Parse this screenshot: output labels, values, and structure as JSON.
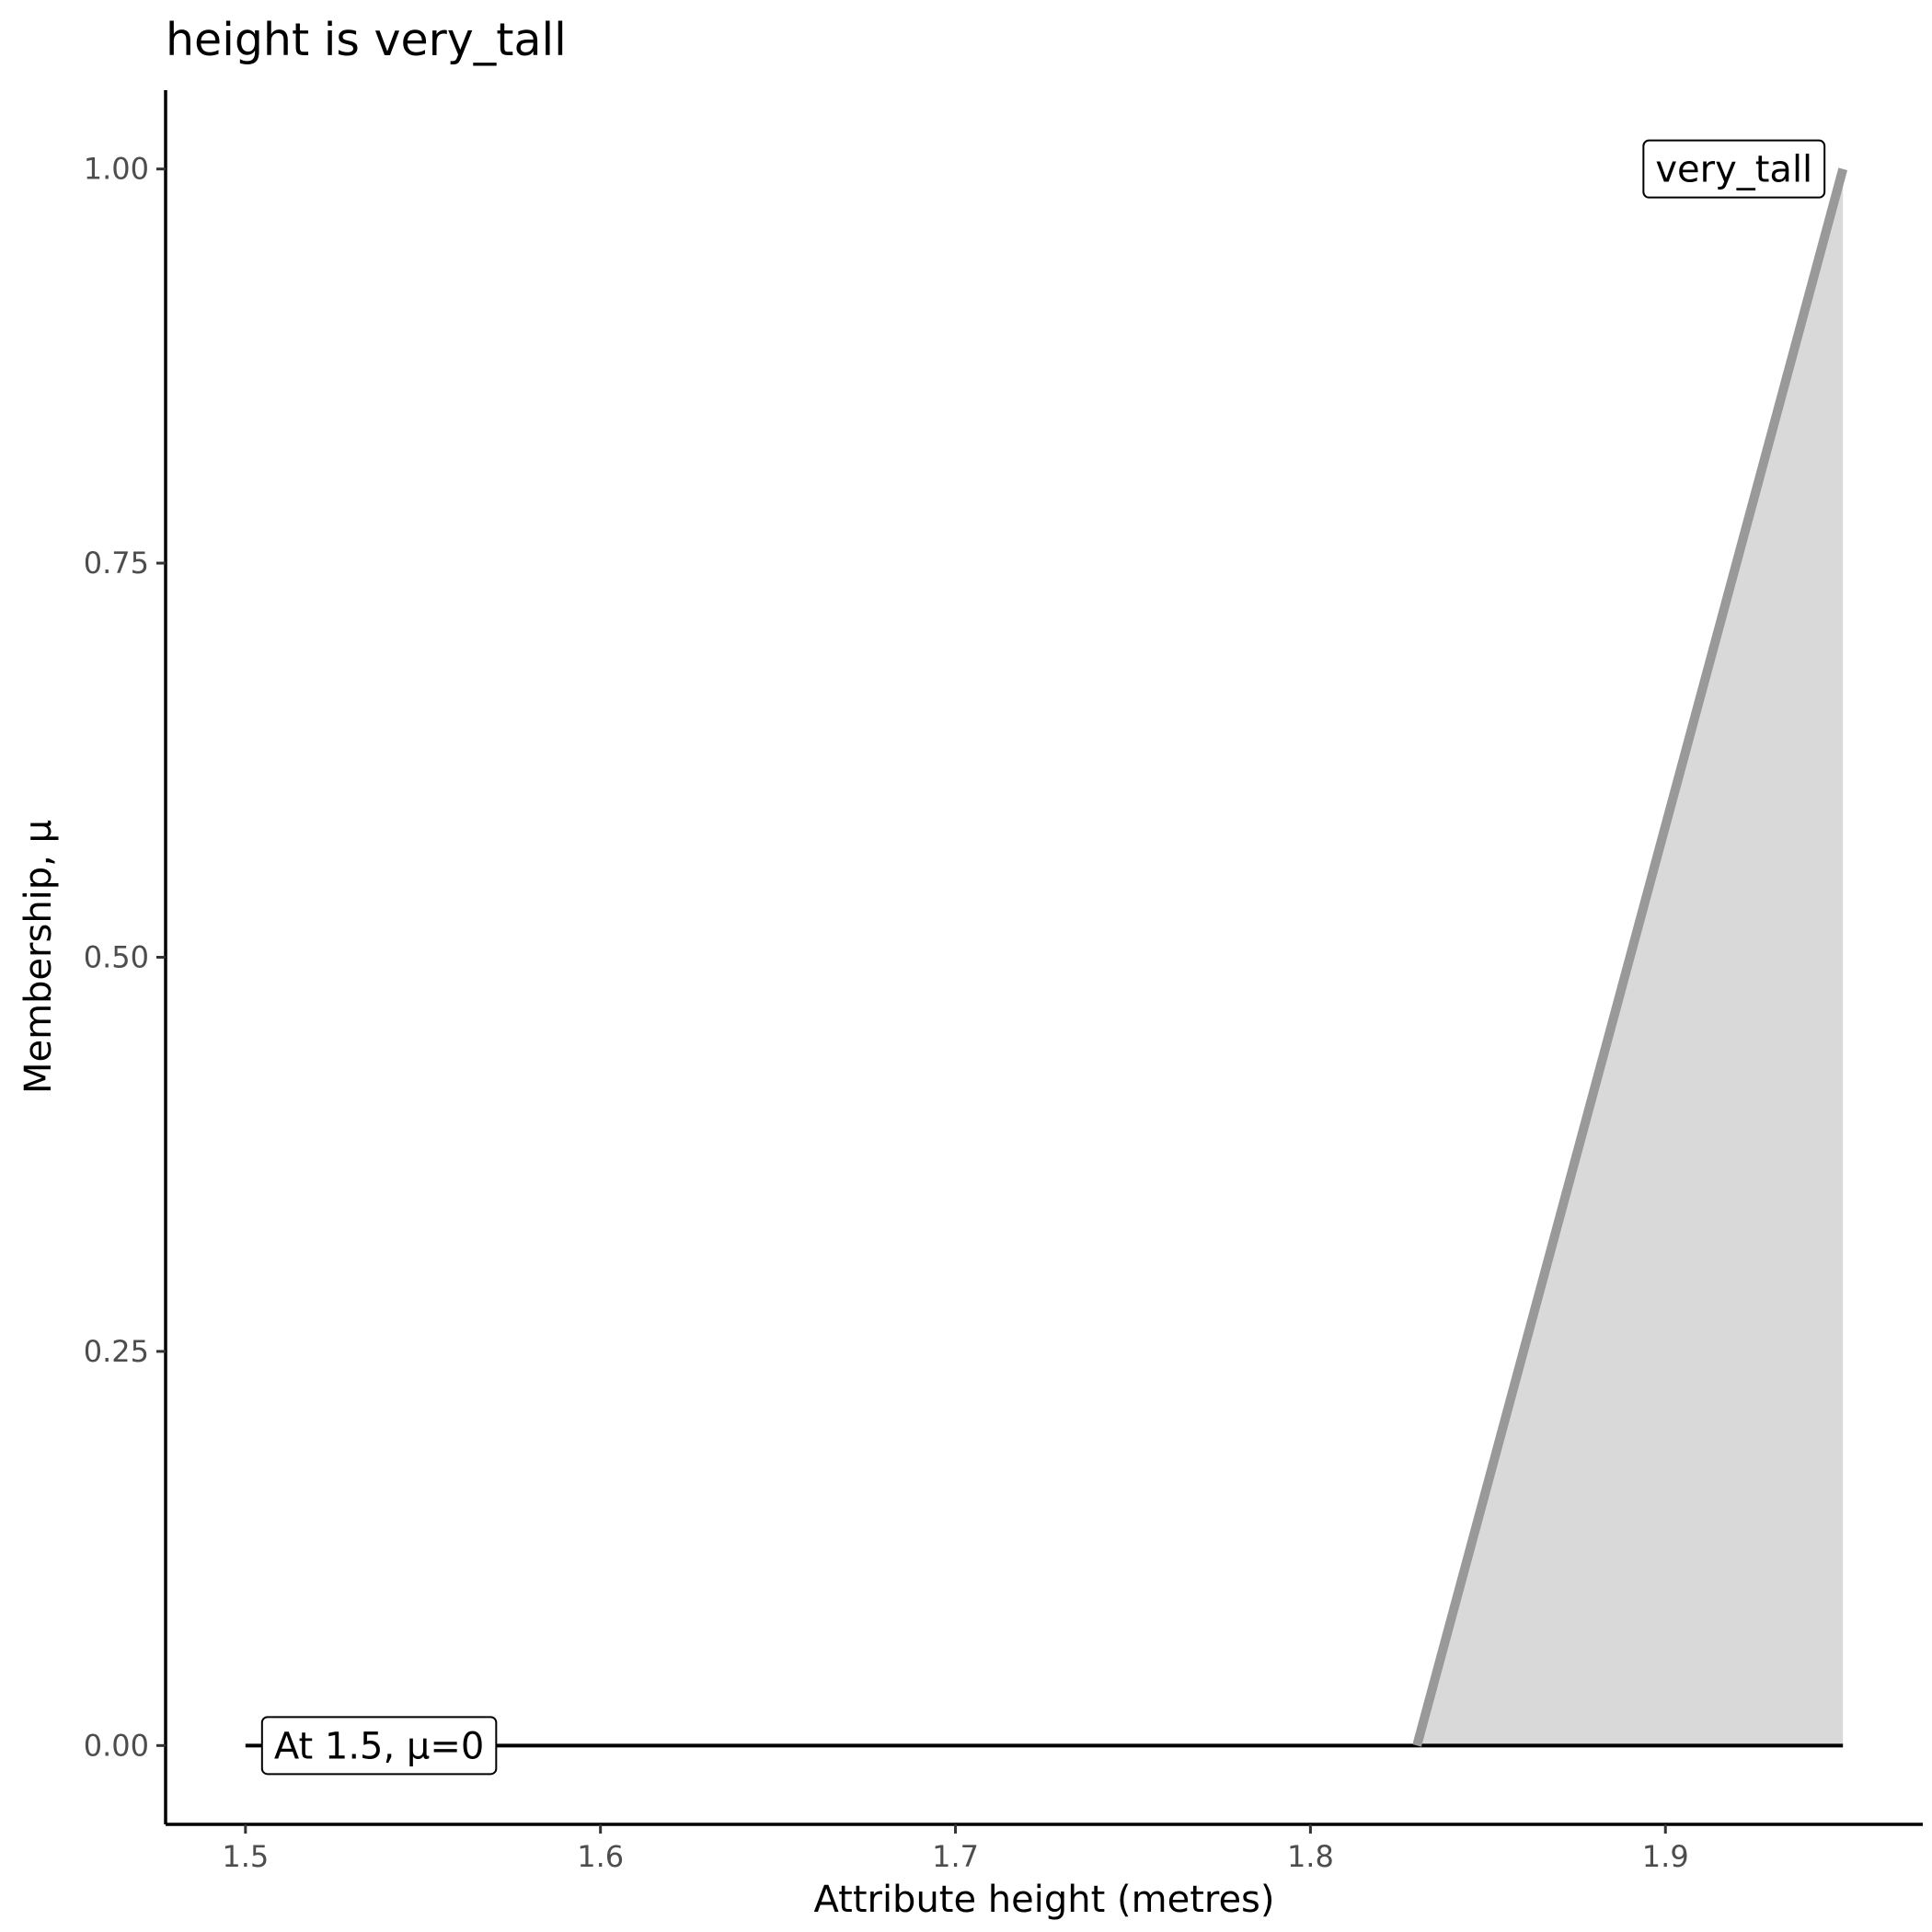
{
  "chart_data": {
    "type": "area",
    "title": "height is very_tall",
    "xlabel": "Attribute height (metres)",
    "ylabel": "Membership, μ",
    "xlim": [
      1.4775,
      1.9725
    ],
    "ylim": [
      -0.05,
      1.05
    ],
    "x_ticks": [
      1.5,
      1.6,
      1.7,
      1.8,
      1.9
    ],
    "x_tick_labels": [
      "1.5",
      "1.6",
      "1.7",
      "1.8",
      "1.9"
    ],
    "y_ticks": [
      0,
      0.25,
      0.5,
      0.75,
      1.0
    ],
    "y_tick_labels": [
      "0.00",
      "0.25",
      "0.50",
      "0.75",
      "1.00"
    ],
    "grid": false,
    "series": [
      {
        "name": "very_tall",
        "x": [
          1.83,
          1.95
        ],
        "y": [
          0,
          1
        ],
        "color": "#999999",
        "fill": "#d9d9d9"
      }
    ],
    "baseline": {
      "x": [
        1.5,
        1.95
      ],
      "y": [
        0,
        0
      ],
      "color": "#000000"
    },
    "annotations": [
      {
        "text": "very_tall",
        "x": 1.95,
        "y": 1.0,
        "anchor": "end"
      },
      {
        "text": "At 1.5, μ=0",
        "x": 1.5,
        "y": 0,
        "anchor": "start"
      }
    ]
  }
}
